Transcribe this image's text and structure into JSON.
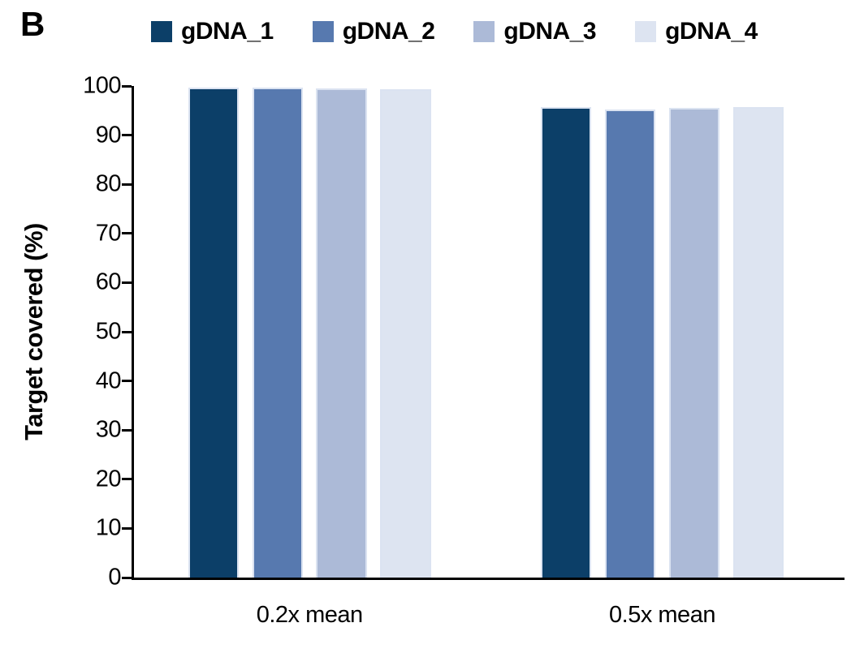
{
  "panel_label": "B",
  "chart_data": {
    "type": "bar",
    "title": "",
    "categories": [
      "0.2x mean",
      "0.5x mean"
    ],
    "series": [
      {
        "name": "gDNA_1",
        "color": "#0c3f68",
        "values": [
          99.7,
          95.7
        ]
      },
      {
        "name": "gDNA_2",
        "color": "#5779af",
        "values": [
          99.6,
          95.2
        ]
      },
      {
        "name": "gDNA_3",
        "color": "#acbad7",
        "values": [
          99.5,
          95.6
        ]
      },
      {
        "name": "gDNA_4",
        "color": "#dde4f1",
        "values": [
          99.4,
          95.8
        ]
      }
    ],
    "xlabel": "",
    "ylabel": "Target covered (%)",
    "ylim": [
      0,
      100
    ],
    "yticks": [
      "0",
      "10",
      "20",
      "30",
      "40",
      "50",
      "60",
      "70",
      "80",
      "90",
      "100"
    ],
    "legend_position": "top",
    "grid": false,
    "bar_outline_color": "#dbe3f1",
    "axis_color": "#000000",
    "text_color": "#000000"
  }
}
